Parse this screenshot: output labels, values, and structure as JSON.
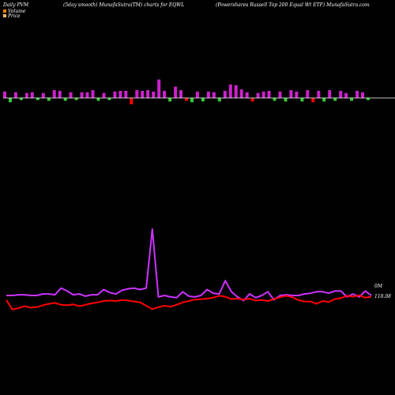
{
  "header": {
    "left": "Daily PVM",
    "middle": "(5day smooth) MunafaSutra(TM) charts for EQWL",
    "right": "(Powershares Russell Top 200  Equal Wt ETF) MunafaSutra.com"
  },
  "legend": [
    {
      "label": "Volume",
      "color": "#ff7f00"
    },
    {
      "label": "Price",
      "color": "#ffb36b"
    }
  ],
  "end_labels": {
    "volume": "0M",
    "price": "118.08"
  },
  "colors": {
    "background": "#000000",
    "volume_line": "#cc33ff",
    "price_line": "#ff0000",
    "bar_up": "#cc22cc",
    "bar_down_green": "#33cc33",
    "bar_down_red": "#ff0000",
    "baseline": "#ffffff"
  },
  "chart_data": {
    "type": "line",
    "title": "",
    "xlabel": "",
    "ylabel": "",
    "series": [
      {
        "name": "Volume",
        "values": [
          60,
          60,
          61,
          61,
          60,
          60,
          62,
          62,
          61,
          70,
          66,
          61,
          62,
          59,
          61,
          61,
          68,
          64,
          62,
          67,
          69,
          70,
          68,
          70,
          150,
          58,
          60,
          58,
          57,
          65,
          59,
          58,
          60,
          68,
          63,
          62,
          80,
          65,
          58,
          53,
          62,
          57,
          60,
          65,
          54,
          60,
          61,
          60,
          60,
          62,
          63,
          65,
          65,
          63,
          66,
          66,
          58,
          62,
          58,
          66,
          60
        ]
      },
      {
        "name": "Price",
        "values": [
          117.2,
          115.2,
          115.5,
          115.9,
          115.6,
          115.7,
          116.1,
          116.4,
          116.6,
          116.2,
          116.1,
          116.3,
          115.9,
          116.2,
          116.5,
          116.7,
          117,
          117.1,
          117,
          117.2,
          117.1,
          116.9,
          116.7,
          116,
          115.3,
          115.7,
          116,
          115.8,
          116.2,
          116.7,
          117,
          117.3,
          117.4,
          117.5,
          117.7,
          118.1,
          117.9,
          117.4,
          117.5,
          117.3,
          117.5,
          117.1,
          117.2,
          117,
          117.4,
          117.8,
          118.1,
          117.8,
          117.2,
          116.9,
          116.9,
          116.4,
          117,
          116.8,
          117.4,
          117.6,
          118.1,
          117.9,
          118.2,
          117.7,
          117.9
        ]
      }
    ],
    "bars": [
      {
        "dir": "up",
        "color": "magenta",
        "value": 0.45
      },
      {
        "dir": "down",
        "color": "green",
        "value": 0.3
      },
      {
        "dir": "up",
        "color": "magenta",
        "value": 0.4
      },
      {
        "dir": "down",
        "color": "green",
        "value": 0.15
      },
      {
        "dir": "up",
        "color": "magenta",
        "value": 0.35
      },
      {
        "dir": "up",
        "color": "magenta",
        "value": 0.4
      },
      {
        "dir": "down",
        "color": "green",
        "value": 0.15
      },
      {
        "dir": "up",
        "color": "magenta",
        "value": 0.35
      },
      {
        "dir": "down",
        "color": "green",
        "value": 0.2
      },
      {
        "dir": "up",
        "color": "magenta",
        "value": 0.55
      },
      {
        "dir": "up",
        "color": "magenta",
        "value": 0.5
      },
      {
        "dir": "down",
        "color": "green",
        "value": 0.2
      },
      {
        "dir": "up",
        "color": "magenta",
        "value": 0.4
      },
      {
        "dir": "down",
        "color": "green",
        "value": 0.15
      },
      {
        "dir": "up",
        "color": "magenta",
        "value": 0.4
      },
      {
        "dir": "up",
        "color": "magenta",
        "value": 0.4
      },
      {
        "dir": "up",
        "color": "magenta",
        "value": 0.55
      },
      {
        "dir": "down",
        "color": "green",
        "value": 0.2
      },
      {
        "dir": "up",
        "color": "magenta",
        "value": 0.35
      },
      {
        "dir": "down",
        "color": "green",
        "value": 0.15
      },
      {
        "dir": "up",
        "color": "magenta",
        "value": 0.45
      },
      {
        "dir": "up",
        "color": "magenta",
        "value": 0.5
      },
      {
        "dir": "up",
        "color": "magenta",
        "value": 0.5
      },
      {
        "dir": "down",
        "color": "red",
        "value": 0.45
      },
      {
        "dir": "up",
        "color": "magenta",
        "value": 0.55
      },
      {
        "dir": "up",
        "color": "magenta",
        "value": 0.5
      },
      {
        "dir": "up",
        "color": "magenta",
        "value": 0.55
      },
      {
        "dir": "up",
        "color": "magenta",
        "value": 0.45
      },
      {
        "dir": "up",
        "color": "magenta",
        "value": 1.3
      },
      {
        "dir": "up",
        "color": "magenta",
        "value": 0.5
      },
      {
        "dir": "down",
        "color": "green",
        "value": 0.25
      },
      {
        "dir": "up",
        "color": "magenta",
        "value": 0.8
      },
      {
        "dir": "up",
        "color": "magenta",
        "value": 0.55
      },
      {
        "dir": "down",
        "color": "red",
        "value": 0.2
      },
      {
        "dir": "down",
        "color": "green",
        "value": 0.3
      },
      {
        "dir": "up",
        "color": "magenta",
        "value": 0.45
      },
      {
        "dir": "down",
        "color": "green",
        "value": 0.25
      },
      {
        "dir": "up",
        "color": "magenta",
        "value": 0.45
      },
      {
        "dir": "up",
        "color": "magenta",
        "value": 0.4
      },
      {
        "dir": "down",
        "color": "green",
        "value": 0.25
      },
      {
        "dir": "up",
        "color": "magenta",
        "value": 0.5
      },
      {
        "dir": "up",
        "color": "magenta",
        "value": 0.95
      },
      {
        "dir": "up",
        "color": "magenta",
        "value": 0.9
      },
      {
        "dir": "up",
        "color": "magenta",
        "value": 0.6
      },
      {
        "dir": "up",
        "color": "magenta",
        "value": 0.4
      },
      {
        "dir": "down",
        "color": "red",
        "value": 0.25
      },
      {
        "dir": "up",
        "color": "magenta",
        "value": 0.35
      },
      {
        "dir": "up",
        "color": "magenta",
        "value": 0.45
      },
      {
        "dir": "up",
        "color": "magenta",
        "value": 0.5
      },
      {
        "dir": "down",
        "color": "green",
        "value": 0.2
      },
      {
        "dir": "up",
        "color": "magenta",
        "value": 0.45
      },
      {
        "dir": "down",
        "color": "green",
        "value": 0.25
      },
      {
        "dir": "up",
        "color": "magenta",
        "value": 0.55
      },
      {
        "dir": "up",
        "color": "magenta",
        "value": 0.45
      },
      {
        "dir": "down",
        "color": "green",
        "value": 0.25
      },
      {
        "dir": "up",
        "color": "magenta",
        "value": 0.55
      },
      {
        "dir": "down",
        "color": "red",
        "value": 0.3
      },
      {
        "dir": "up",
        "color": "magenta",
        "value": 0.5
      },
      {
        "dir": "down",
        "color": "green",
        "value": 0.25
      },
      {
        "dir": "up",
        "color": "magenta",
        "value": 0.55
      },
      {
        "dir": "down",
        "color": "green",
        "value": 0.2
      },
      {
        "dir": "up",
        "color": "magenta",
        "value": 0.5
      },
      {
        "dir": "up",
        "color": "magenta",
        "value": 0.35
      },
      {
        "dir": "down",
        "color": "green",
        "value": 0.2
      },
      {
        "dir": "up",
        "color": "magenta",
        "value": 0.5
      },
      {
        "dir": "up",
        "color": "magenta",
        "value": 0.4
      },
      {
        "dir": "down",
        "color": "green",
        "value": 0.15
      }
    ]
  }
}
